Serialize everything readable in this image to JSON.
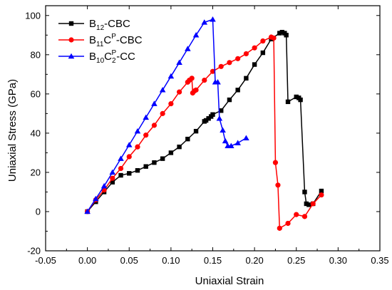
{
  "chart_data": {
    "type": "line",
    "xlabel": "Uniaxial Strain",
    "ylabel": "Uniaxial Stress (GPa)",
    "xlim": [
      -0.05,
      0.35
    ],
    "ylim": [
      -20,
      105
    ],
    "xticks": [
      -0.05,
      0.0,
      0.05,
      0.1,
      0.15,
      0.2,
      0.25,
      0.3,
      0.35
    ],
    "xtick_labels": [
      "-0.05",
      "0.00",
      "0.05",
      "0.10",
      "0.15",
      "0.20",
      "0.25",
      "0.30",
      "0.35"
    ],
    "yticks": [
      -20,
      0,
      20,
      40,
      60,
      80,
      100
    ],
    "ytick_labels": [
      "-20",
      "0",
      "20",
      "40",
      "60",
      "80",
      "100"
    ],
    "grid": false,
    "legend_position": "top-left",
    "series": [
      {
        "name": "B12-CBC",
        "legend": {
          "base": "B",
          "sub1": "12",
          "sup1": "",
          "mid": "",
          "sub2": "",
          "sup2": "",
          "tail": "-CBC"
        },
        "color": "#000000",
        "marker": "square",
        "points": [
          [
            0.0,
            0.0
          ],
          [
            0.01,
            5.0
          ],
          [
            0.02,
            10.0
          ],
          [
            0.03,
            15.0
          ],
          [
            0.04,
            18.5
          ],
          [
            0.05,
            19.5
          ],
          [
            0.06,
            21.0
          ],
          [
            0.07,
            23.0
          ],
          [
            0.08,
            25.0
          ],
          [
            0.09,
            27.0
          ],
          [
            0.1,
            30.0
          ],
          [
            0.11,
            33.0
          ],
          [
            0.12,
            37.0
          ],
          [
            0.13,
            41.0
          ],
          [
            0.14,
            46.0
          ],
          [
            0.142,
            46.5
          ],
          [
            0.145,
            47.5
          ],
          [
            0.148,
            48.5
          ],
          [
            0.15,
            49.5
          ],
          [
            0.16,
            51.5
          ],
          [
            0.17,
            57.0
          ],
          [
            0.18,
            62.0
          ],
          [
            0.19,
            68.0
          ],
          [
            0.2,
            75.0
          ],
          [
            0.21,
            81.0
          ],
          [
            0.22,
            88.0
          ],
          [
            0.23,
            91.0
          ],
          [
            0.233,
            91.5
          ],
          [
            0.236,
            91.0
          ],
          [
            0.238,
            90.0
          ],
          [
            0.24,
            56.0
          ],
          [
            0.25,
            58.5
          ],
          [
            0.253,
            58.0
          ],
          [
            0.255,
            57.0
          ],
          [
            0.26,
            10.0
          ],
          [
            0.262,
            4.0
          ],
          [
            0.265,
            3.5
          ],
          [
            0.27,
            4.0
          ],
          [
            0.28,
            10.5
          ]
        ]
      },
      {
        "name": "B11CP-CBC",
        "legend": {
          "base": "B",
          "sub1": "11",
          "sup1": "",
          "mid": "C",
          "sub2": "",
          "sup2": "P",
          "tail": "-CBC"
        },
        "color": "#ff0000",
        "marker": "circle",
        "points": [
          [
            0.0,
            0.0
          ],
          [
            0.01,
            6.0
          ],
          [
            0.02,
            11.0
          ],
          [
            0.03,
            17.0
          ],
          [
            0.04,
            22.0
          ],
          [
            0.05,
            28.0
          ],
          [
            0.06,
            33.0
          ],
          [
            0.07,
            39.0
          ],
          [
            0.08,
            44.0
          ],
          [
            0.09,
            50.0
          ],
          [
            0.1,
            55.0
          ],
          [
            0.11,
            61.0
          ],
          [
            0.12,
            66.0
          ],
          [
            0.122,
            67.0
          ],
          [
            0.125,
            68.0
          ],
          [
            0.126,
            60.5
          ],
          [
            0.128,
            61.5
          ],
          [
            0.13,
            62.0
          ],
          [
            0.14,
            67.0
          ],
          [
            0.15,
            71.5
          ],
          [
            0.16,
            74.0
          ],
          [
            0.17,
            76.0
          ],
          [
            0.18,
            78.0
          ],
          [
            0.19,
            80.5
          ],
          [
            0.2,
            83.5
          ],
          [
            0.21,
            87.0
          ],
          [
            0.22,
            89.0
          ],
          [
            0.223,
            88.5
          ],
          [
            0.225,
            25.0
          ],
          [
            0.228,
            13.5
          ],
          [
            0.23,
            -8.5
          ],
          [
            0.24,
            -6.0
          ],
          [
            0.25,
            -1.5
          ],
          [
            0.26,
            -2.5
          ],
          [
            0.27,
            4.0
          ],
          [
            0.28,
            8.5
          ]
        ]
      },
      {
        "name": "B10C2P-CC",
        "legend": {
          "base": "B",
          "sub1": "10",
          "sup1": "",
          "mid": "C",
          "sub2": "2",
          "sup2": "P",
          "tail": "-CC"
        },
        "color": "#0000ff",
        "marker": "triangle",
        "points": [
          [
            0.0,
            0.0
          ],
          [
            0.01,
            6.5
          ],
          [
            0.02,
            13.0
          ],
          [
            0.03,
            20.0
          ],
          [
            0.04,
            27.0
          ],
          [
            0.05,
            34.0
          ],
          [
            0.06,
            41.0
          ],
          [
            0.07,
            48.0
          ],
          [
            0.08,
            55.0
          ],
          [
            0.09,
            62.0
          ],
          [
            0.1,
            69.0
          ],
          [
            0.11,
            76.0
          ],
          [
            0.12,
            83.0
          ],
          [
            0.13,
            90.0
          ],
          [
            0.14,
            96.5
          ],
          [
            0.15,
            98.0
          ],
          [
            0.153,
            66.0
          ],
          [
            0.156,
            66.0
          ],
          [
            0.158,
            47.5
          ],
          [
            0.162,
            41.5
          ],
          [
            0.165,
            36.0
          ],
          [
            0.168,
            33.5
          ],
          [
            0.172,
            33.5
          ],
          [
            0.18,
            35.0
          ],
          [
            0.19,
            37.5
          ]
        ]
      }
    ]
  }
}
